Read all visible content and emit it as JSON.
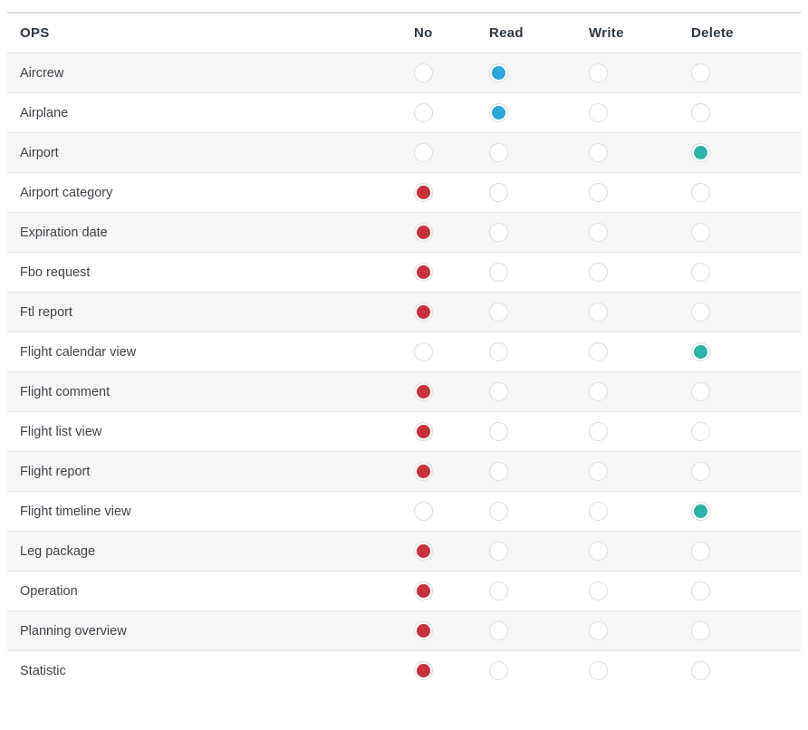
{
  "table": {
    "columns": [
      {
        "key": "ops",
        "label": "OPS"
      },
      {
        "key": "no",
        "label": "No"
      },
      {
        "key": "read",
        "label": "Read"
      },
      {
        "key": "write",
        "label": "Write"
      },
      {
        "key": "delete",
        "label": "Delete"
      }
    ],
    "option_keys": [
      "no",
      "read",
      "write",
      "delete"
    ],
    "rows": [
      {
        "label": "Aircrew",
        "selected": "read"
      },
      {
        "label": "Airplane",
        "selected": "read"
      },
      {
        "label": "Airport",
        "selected": "delete"
      },
      {
        "label": "Airport category",
        "selected": "no"
      },
      {
        "label": "Expiration date",
        "selected": "no"
      },
      {
        "label": "Fbo request",
        "selected": "no"
      },
      {
        "label": "Ftl report",
        "selected": "no"
      },
      {
        "label": "Flight calendar view",
        "selected": "delete"
      },
      {
        "label": "Flight comment",
        "selected": "no"
      },
      {
        "label": "Flight list view",
        "selected": "no"
      },
      {
        "label": "Flight report",
        "selected": "no"
      },
      {
        "label": "Flight timeline view",
        "selected": "delete"
      },
      {
        "label": "Leg package",
        "selected": "no"
      },
      {
        "label": "Operation",
        "selected": "no"
      },
      {
        "label": "Planning overview",
        "selected": "no"
      },
      {
        "label": "Statistic",
        "selected": "no"
      }
    ],
    "selected_colors": {
      "no": "#c6323d",
      "read": "#2aa6da",
      "delete": "#2bb3a9"
    }
  }
}
